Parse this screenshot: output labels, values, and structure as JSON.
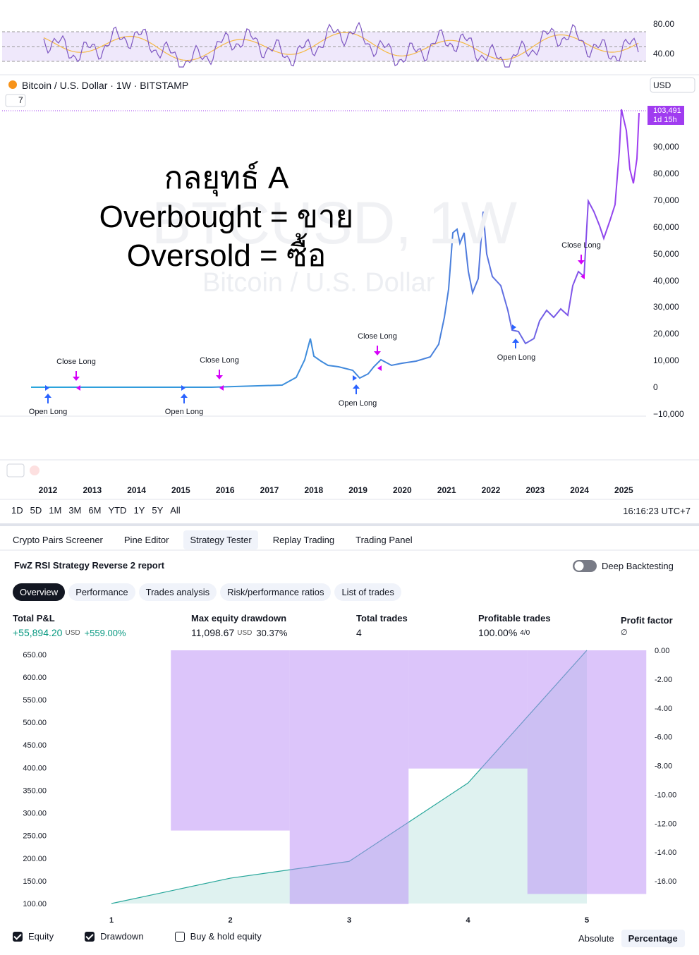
{
  "rsi_panel": {
    "ticks": [
      "80.00",
      "40.00"
    ]
  },
  "symbol_header": {
    "title": "Bitcoin / U.S. Dollar · 1W · BITSTAMP",
    "currency": "USD",
    "indicators_count": "7"
  },
  "overlay_text": [
    "กลยุทธ์ A",
    "Overbought = ขาย",
    "Oversold = ซื้อ"
  ],
  "watermark": {
    "symbol": "BTCUSD, 1W",
    "name": "Bitcoin / U.S. Dollar"
  },
  "price_axis": {
    "ticks": [
      "90,000",
      "80,000",
      "70,000",
      "60,000",
      "50,000",
      "40,000",
      "30,000",
      "20,000",
      "10,000",
      "0",
      "−10,000"
    ],
    "last_price": "103,491",
    "countdown": "1d 15h"
  },
  "signals": [
    "Close Long",
    "Close Long",
    "Close Long",
    "Close Long",
    "Open Long",
    "Open Long",
    "Open Long",
    "Open Long"
  ],
  "time_axis": {
    "years": [
      "2012",
      "2013",
      "2014",
      "2015",
      "2016",
      "2017",
      "2018",
      "2019",
      "2020",
      "2021",
      "2022",
      "2023",
      "2024",
      "2025"
    ]
  },
  "timeframes": [
    "1D",
    "5D",
    "1M",
    "3M",
    "6M",
    "YTD",
    "1Y",
    "5Y",
    "All"
  ],
  "clock": "16:16:23 UTC+7",
  "bottom_tabs": [
    "Crypto Pairs Screener",
    "Pine Editor",
    "Strategy Tester",
    "Replay Trading",
    "Trading Panel"
  ],
  "strategy": {
    "name": "FwZ RSI Strategy Reverse 2 report",
    "deep_backtesting": "Deep Backtesting",
    "tabs": [
      "Overview",
      "Performance",
      "Trades analysis",
      "Risk/performance ratios",
      "List of trades"
    ]
  },
  "metrics": [
    {
      "label": "Total P&L",
      "value": "+55,894.20",
      "unit": "USD",
      "percent": "+559.00%"
    },
    {
      "label": "Max equity drawdown",
      "value": "11,098.67",
      "unit": "USD",
      "percent": "30.37%"
    },
    {
      "label": "Total trades",
      "value": "4"
    },
    {
      "label": "Profitable trades",
      "value": "100.00%",
      "detail": "4/0"
    },
    {
      "label": "Profit factor",
      "value": "∅"
    }
  ],
  "chart_data": {
    "type": "line",
    "categories": [
      "1",
      "2",
      "3",
      "4",
      "5"
    ],
    "series": [
      {
        "name": "Equity",
        "type": "line",
        "color": "#26a69a",
        "checked": true,
        "values": [
          100,
          156,
          193,
          366,
          659
        ]
      },
      {
        "name": "Drawdown",
        "type": "bar",
        "axis": "y2",
        "color": "#b98cf5",
        "checked": true,
        "values": [
          null,
          -12.5,
          -17.6,
          -8.2,
          -16.9
        ]
      }
    ],
    "ylim": [
      86,
      659
    ],
    "yticks": [
      {
        "value": 100,
        "label": "100.00"
      },
      {
        "value": 150,
        "label": "150.00"
      },
      {
        "value": 200,
        "label": "200.00"
      },
      {
        "value": 250,
        "label": "250.00"
      },
      {
        "value": 300,
        "label": "300.00"
      },
      {
        "value": 350,
        "label": "350.00"
      },
      {
        "value": 400,
        "label": "400.00"
      },
      {
        "value": 450,
        "label": "450.00"
      },
      {
        "value": 500,
        "label": "500.00"
      },
      {
        "value": 550,
        "label": "550.00"
      },
      {
        "value": 600,
        "label": "600.00"
      },
      {
        "value": 650,
        "label": "650.00"
      }
    ],
    "y2lim": [
      -18,
      0
    ],
    "y2ticks": [
      {
        "value": 0,
        "label": "0.00"
      },
      {
        "value": -2,
        "label": "-2.00"
      },
      {
        "value": -4,
        "label": "-4.00"
      },
      {
        "value": -6,
        "label": "-6.00"
      },
      {
        "value": -8,
        "label": "-8.00"
      },
      {
        "value": -10,
        "label": "-10.00"
      },
      {
        "value": -12,
        "label": "-12.00"
      },
      {
        "value": -14,
        "label": "-14.00"
      },
      {
        "value": -16,
        "label": "-16.00"
      }
    ]
  },
  "extra_legend": {
    "label": "Buy & hold equity",
    "checked": false
  },
  "scale_modes": [
    "Absolute",
    "Percentage"
  ]
}
